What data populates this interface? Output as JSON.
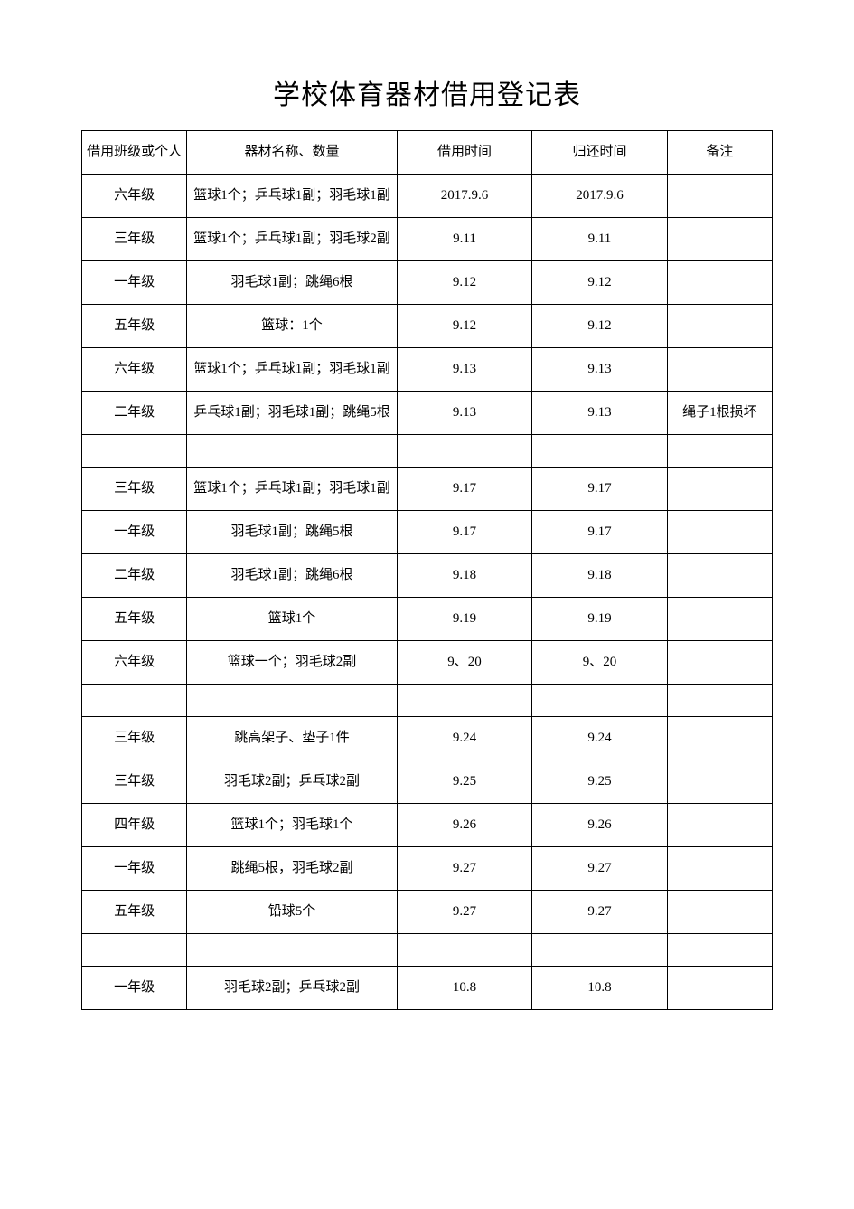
{
  "title": "学校体育器材借用登记表",
  "columns": [
    "借用班级或个人",
    "器材名称、数量",
    "借用时间",
    "归还时间",
    "备注"
  ],
  "rows": [
    {
      "class": "六年级",
      "equipment": "篮球1个；乒乓球1副；羽毛球1副",
      "borrow": "2017.9.6",
      "return": "2017.9.6",
      "remark": ""
    },
    {
      "class": "三年级",
      "equipment": "篮球1个；乒乓球1副；羽毛球2副",
      "borrow": "9.11",
      "return": "9.11",
      "remark": ""
    },
    {
      "class": "一年级",
      "equipment": "羽毛球1副；跳绳6根",
      "borrow": "9.12",
      "return": "9.12",
      "remark": ""
    },
    {
      "class": "五年级",
      "equipment": "篮球：1个",
      "borrow": "9.12",
      "return": "9.12",
      "remark": ""
    },
    {
      "class": "六年级",
      "equipment": "篮球1个；乒乓球1副；羽毛球1副",
      "borrow": "9.13",
      "return": "9.13",
      "remark": ""
    },
    {
      "class": "二年级",
      "equipment": "乒乓球1副；羽毛球1副；跳绳5根",
      "borrow": "9.13",
      "return": "9.13",
      "remark": "绳子1根损坏"
    },
    {
      "class": "",
      "equipment": "",
      "borrow": "",
      "return": "",
      "remark": "",
      "empty": true
    },
    {
      "class": "三年级",
      "equipment": "篮球1个；乒乓球1副；羽毛球1副",
      "borrow": "9.17",
      "return": "9.17",
      "remark": ""
    },
    {
      "class": "一年级",
      "equipment": "羽毛球1副；跳绳5根",
      "borrow": "9.17",
      "return": "9.17",
      "remark": ""
    },
    {
      "class": "二年级",
      "equipment": "羽毛球1副；跳绳6根",
      "borrow": "9.18",
      "return": "9.18",
      "remark": ""
    },
    {
      "class": "五年级",
      "equipment": "篮球1个",
      "borrow": "9.19",
      "return": "9.19",
      "remark": ""
    },
    {
      "class": "六年级",
      "equipment": "篮球一个；羽毛球2副",
      "borrow": "9、20",
      "return": "9、20",
      "remark": ""
    },
    {
      "class": "",
      "equipment": "",
      "borrow": "",
      "return": "",
      "remark": "",
      "empty": true
    },
    {
      "class": "三年级",
      "equipment": "跳高架子、垫子1件",
      "borrow": "9.24",
      "return": "9.24",
      "remark": ""
    },
    {
      "class": "三年级",
      "equipment": "羽毛球2副；乒乓球2副",
      "borrow": "9.25",
      "return": "9.25",
      "remark": ""
    },
    {
      "class": "四年级",
      "equipment": "篮球1个；羽毛球1个",
      "borrow": "9.26",
      "return": "9.26",
      "remark": ""
    },
    {
      "class": "一年级",
      "equipment": "跳绳5根，羽毛球2副",
      "borrow": "9.27",
      "return": "9.27",
      "remark": ""
    },
    {
      "class": "五年级",
      "equipment": "铅球5个",
      "borrow": "9.27",
      "return": "9.27",
      "remark": ""
    },
    {
      "class": "",
      "equipment": "",
      "borrow": "",
      "return": "",
      "remark": "",
      "empty": true
    },
    {
      "class": "一年级",
      "equipment": "羽毛球2副；乒乓球2副",
      "borrow": "10.8",
      "return": "10.8",
      "remark": ""
    }
  ],
  "style": {
    "title_fontsize": 30,
    "cell_fontsize": 15,
    "border_color": "#000000",
    "background_color": "#ffffff",
    "text_color": "#000000",
    "column_widths_pct": [
      14,
      28,
      18,
      18,
      14
    ]
  }
}
